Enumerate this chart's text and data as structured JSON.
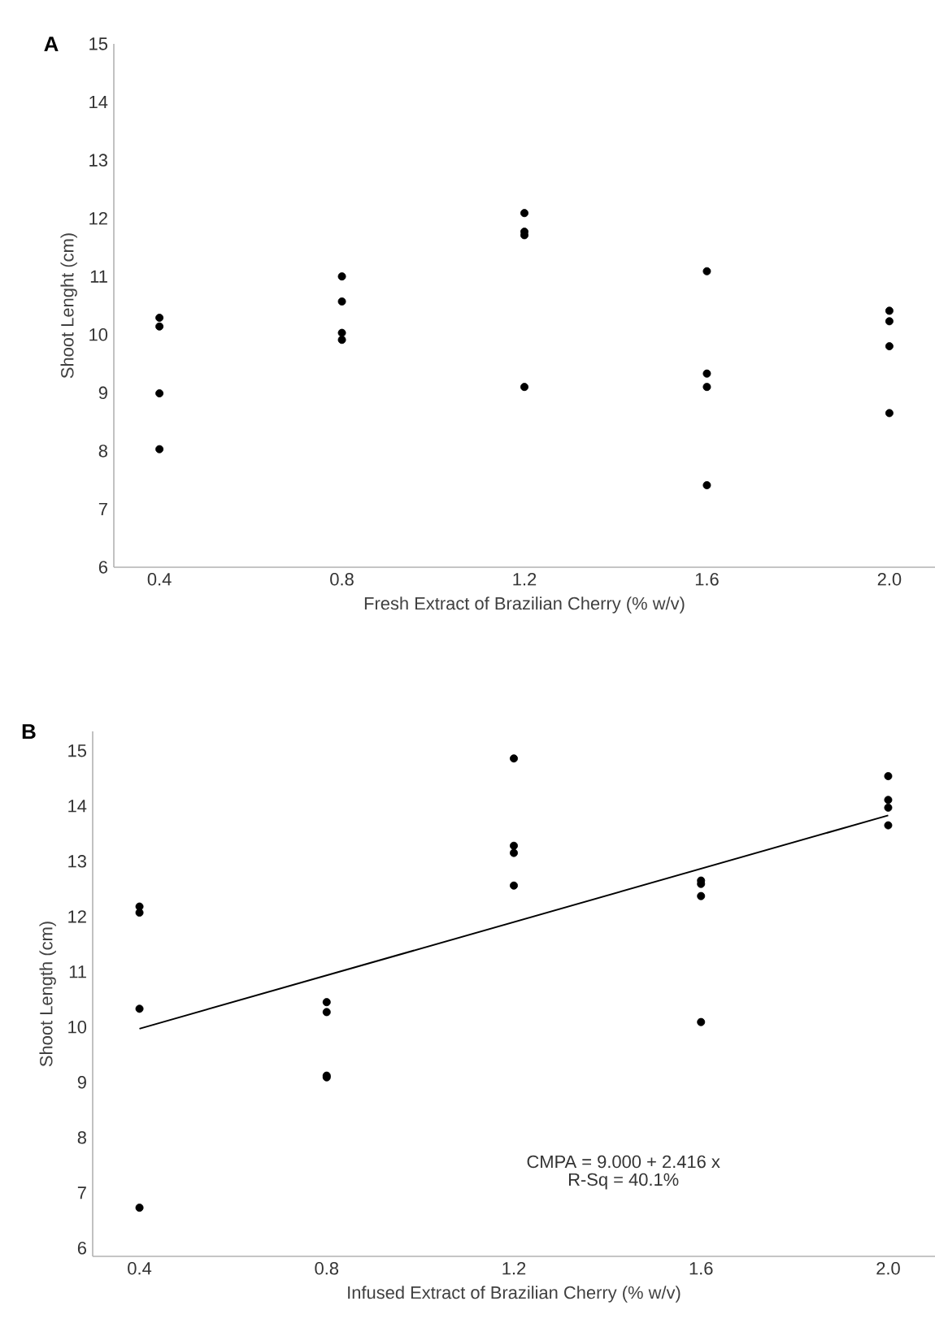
{
  "chart_data": [
    {
      "type": "scatter",
      "title": "A",
      "xlabel": "Fresh Extract of Brazilian Cherry (% w/v)",
      "ylabel": "Shoot Lenght (cm)",
      "xlim": [
        0.3,
        2.1
      ],
      "ylim": [
        6,
        15
      ],
      "xticks": [
        0.4,
        0.8,
        1.2,
        1.6,
        {
          "value": 2.0,
          "label": "2.0"
        }
      ],
      "yticks": [
        6,
        7,
        8,
        9,
        10,
        11,
        12,
        13,
        14,
        15
      ],
      "marker": "circle",
      "series": [
        {
          "color": "#000000",
          "x": [
            0.4,
            0.4,
            0.4,
            0.4,
            0.8,
            0.8,
            0.8,
            0.8,
            1.2,
            1.2,
            1.2,
            1.2,
            1.6,
            1.6,
            1.6,
            1.6,
            2.0,
            2.0,
            2.0,
            2.0
          ],
          "values": [
            10.29,
            10.14,
            8.99,
            8.03,
            11.0,
            10.57,
            10.03,
            9.91,
            12.09,
            11.77,
            11.71,
            9.1,
            11.09,
            9.33,
            9.1,
            7.41,
            10.41,
            10.23,
            9.8,
            8.65
          ]
        }
      ]
    },
    {
      "type": "scatter",
      "title": "B",
      "xlabel": "Infused Extract of Brazilian Cherry (% w/v)",
      "ylabel": "Shoot Length (cm)",
      "xlim": [
        0.3,
        2.1
      ],
      "ylim": [
        5.85,
        15.35
      ],
      "xticks": [
        0.4,
        0.8,
        1.2,
        1.6,
        {
          "value": 2.0,
          "label": "2.0"
        }
      ],
      "yticks": [
        6,
        7,
        8,
        9,
        10,
        11,
        12,
        13,
        14,
        15
      ],
      "marker": "circle",
      "annotations": [
        "CMPA = 9.000 + 2.416 x",
        "R-Sq = 40.1%"
      ],
      "series": [
        {
          "color": "#000000",
          "x": [
            0.4,
            0.4,
            0.4,
            0.4,
            0.8,
            0.8,
            0.8,
            0.8,
            1.2,
            1.2,
            1.2,
            1.2,
            1.6,
            1.6,
            1.6,
            1.6,
            2.0,
            2.0,
            2.0,
            2.0
          ],
          "values": [
            12.18,
            12.07,
            10.33,
            6.73,
            10.45,
            10.27,
            9.12,
            9.09,
            14.86,
            13.28,
            13.15,
            12.56,
            12.65,
            12.59,
            12.37,
            10.09,
            14.54,
            14.11,
            13.97,
            13.65
          ]
        },
        {
          "type": "line",
          "color": "#000000",
          "marker": "none",
          "x": [
            0.4,
            2.0
          ],
          "values": [
            9.97,
            13.83
          ]
        }
      ]
    }
  ]
}
